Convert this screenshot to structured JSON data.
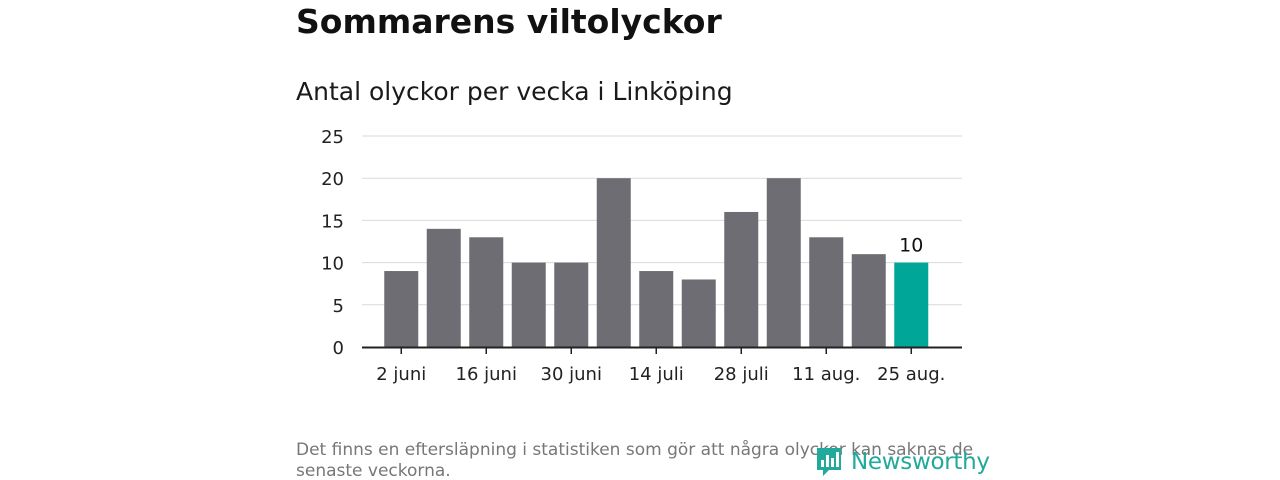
{
  "title": "Sommarens viltolyckor",
  "subtitle": "Antal olyckor per vecka i Linköping",
  "footnote": "Det finns en eftersläpning i statistiken som gör att några olyckor kan saknas de senaste veckorna.",
  "logo_text": "Newsworthy",
  "colors": {
    "bar": "#6e6d73",
    "highlight": "#00a697",
    "grid": "#d9d9d9",
    "axis": "#222222",
    "logo": "#21a99b"
  },
  "chart_data": {
    "type": "bar",
    "title": "Antal olyckor per vecka i Linköping",
    "xlabel": "",
    "ylabel": "",
    "ylim": [
      0,
      25
    ],
    "yticks": [
      0,
      5,
      10,
      15,
      20,
      25
    ],
    "grid": "horizontal",
    "values": [
      9,
      14,
      13,
      10,
      10,
      20,
      9,
      8,
      16,
      20,
      13,
      11,
      10
    ],
    "xtick_labels": [
      {
        "index": 0,
        "label": "2 juni"
      },
      {
        "index": 2,
        "label": "16 juni"
      },
      {
        "index": 4,
        "label": "30 juni"
      },
      {
        "index": 6,
        "label": "14 juli"
      },
      {
        "index": 8,
        "label": "28 juli"
      },
      {
        "index": 10,
        "label": "11 aug."
      },
      {
        "index": 12,
        "label": "25 aug."
      }
    ],
    "highlight_index": 12,
    "data_labels": [
      {
        "index": 12,
        "label": "10"
      }
    ]
  }
}
